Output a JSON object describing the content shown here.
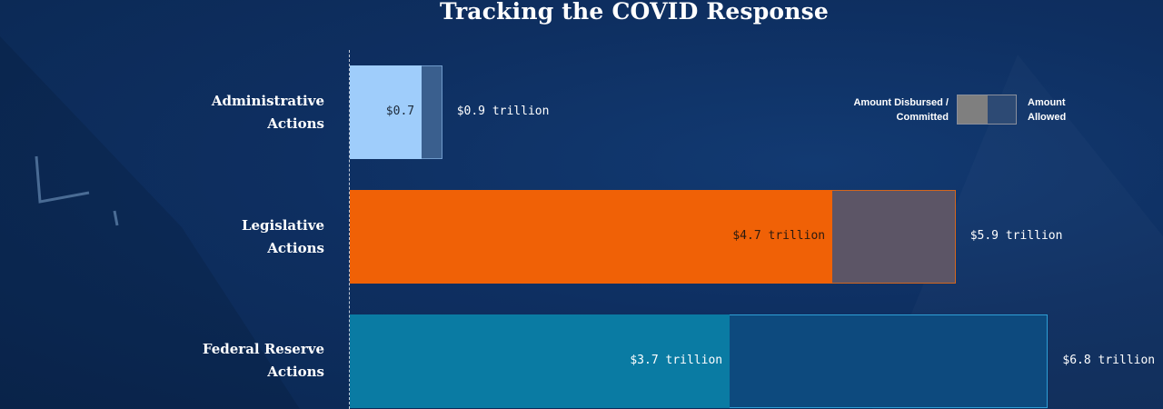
{
  "chart_data": {
    "type": "bar",
    "orientation": "horizontal",
    "stacking": "overlay",
    "title": "Tracking the COVID Response",
    "categories": [
      "Administrative\nActions",
      "Legislative\nActions",
      "Federal Reserve\nActions"
    ],
    "series": [
      {
        "name": "Amount Disbursed / Committed",
        "values": [
          0.7,
          4.7,
          3.7
        ],
        "labels": [
          "$0.7",
          "$4.7 trillion",
          "$3.7 trillion"
        ]
      },
      {
        "name": "Amount Allowed",
        "values": [
          0.9,
          5.9,
          6.8
        ],
        "labels": [
          "$0.9 trillion",
          "$5.9 trillion",
          "$6.8 trillion"
        ]
      }
    ],
    "unit": "trillion USD",
    "xlim": [
      0,
      6.8
    ],
    "grid": false,
    "legend_position": "top-right",
    "colors": {
      "disbursed": [
        "#9fcdfb",
        "#f06106",
        "#0a7ba3"
      ],
      "allowed": [
        "#3a5f8e",
        "#5c5566",
        "#0d4a7e"
      ],
      "allowed_border": [
        "#6f9acb",
        "#d2661e",
        "#2e9fd6"
      ],
      "label_on_bar": [
        "#1d2a3a",
        "#2a1a10",
        "#ffffff"
      ],
      "label_after_bar": "#ffffff"
    }
  },
  "legend": {
    "disbursed_label": "Amount Disbursed / Committed",
    "allowed_label": "Amount Allowed",
    "disbursed_color": "#7f7f7f",
    "allowed_color": "#2d4a74"
  }
}
